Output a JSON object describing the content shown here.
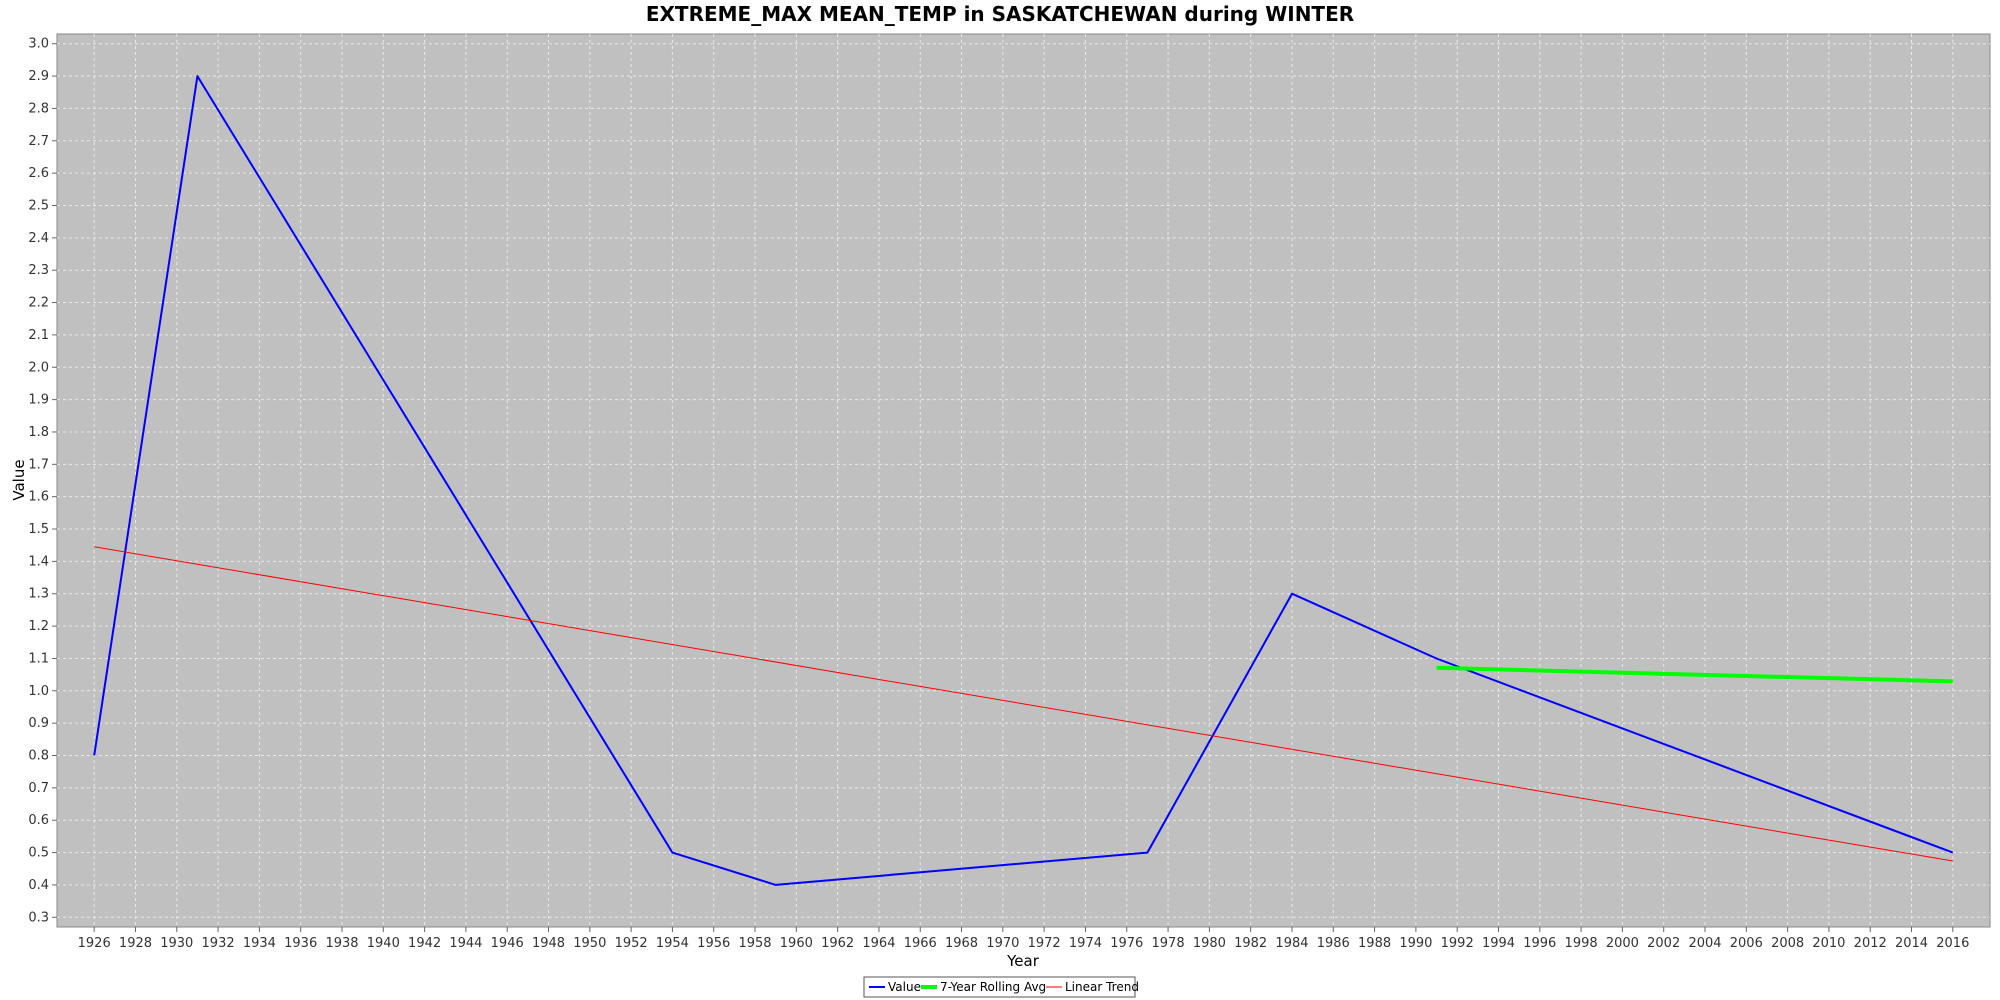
{
  "chart_data": {
    "type": "line",
    "title": "EXTREME_MAX MEAN_TEMP in SASKATCHEWAN during WINTER",
    "xlabel": "Year",
    "ylabel": "Value",
    "xlim": [
      1924.2,
      2017.8
    ],
    "ylim": [
      0.27,
      3.03
    ],
    "x_ticks": [
      1926,
      1928,
      1930,
      1932,
      1934,
      1936,
      1938,
      1940,
      1942,
      1944,
      1946,
      1948,
      1950,
      1952,
      1954,
      1956,
      1958,
      1960,
      1962,
      1964,
      1966,
      1968,
      1970,
      1972,
      1974,
      1976,
      1978,
      1980,
      1982,
      1984,
      1986,
      1988,
      1990,
      1992,
      1994,
      1996,
      1998,
      2000,
      2002,
      2004,
      2006,
      2008,
      2010,
      2012,
      2014,
      2016
    ],
    "y_ticks": [
      0.3,
      0.4,
      0.5,
      0.6,
      0.7,
      0.8,
      0.9,
      1.0,
      1.1,
      1.2,
      1.3,
      1.4,
      1.5,
      1.6,
      1.7,
      1.8,
      1.9,
      2.0,
      2.1,
      2.2,
      2.3,
      2.4,
      2.5,
      2.6,
      2.7,
      2.8,
      2.9,
      3.0
    ],
    "grid": true,
    "legend_position": "bottom",
    "series": [
      {
        "name": "Value",
        "color": "#0000ff",
        "points": [
          [
            1926,
            0.8
          ],
          [
            1931,
            2.9
          ],
          [
            1954,
            0.5
          ],
          [
            1959,
            0.4
          ],
          [
            1977,
            0.5
          ],
          [
            1984,
            1.3
          ],
          [
            1991,
            1.1
          ],
          [
            2016,
            0.5
          ]
        ]
      },
      {
        "name": "7-Year Rolling Avg",
        "color": "#00ff00",
        "points": [
          [
            1991,
            1.071
          ],
          [
            2016,
            1.029
          ]
        ]
      },
      {
        "name": "Linear Trend",
        "color": "#ff0000",
        "points": [
          [
            1926,
            1.445
          ],
          [
            2016,
            0.474
          ]
        ]
      }
    ]
  }
}
